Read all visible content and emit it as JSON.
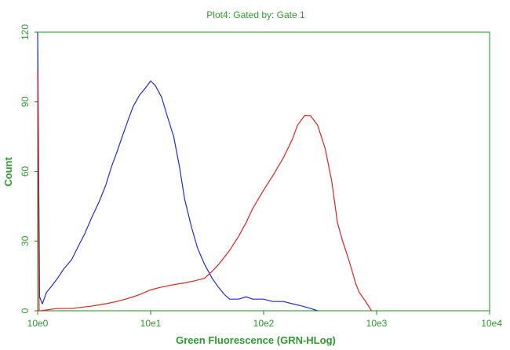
{
  "chart_data": {
    "type": "line",
    "title": "Plot4:  Gated by: Gate 1",
    "xlabel": "Green Fluorescence (GRN-HLog)",
    "ylabel": "Count",
    "x_scale": "log",
    "xlim": [
      1,
      10000
    ],
    "ylim": [
      0,
      120
    ],
    "x_ticks": [
      {
        "value": 1,
        "label": "10e0"
      },
      {
        "value": 10,
        "label": "10e1"
      },
      {
        "value": 100,
        "label": "10e2"
      },
      {
        "value": 1000,
        "label": "10e3"
      },
      {
        "value": 10000,
        "label": "10e4"
      }
    ],
    "y_ticks": [
      {
        "value": 0,
        "label": "0"
      },
      {
        "value": 30,
        "label": "30"
      },
      {
        "value": 60,
        "label": "60"
      },
      {
        "value": 90,
        "label": "90"
      },
      {
        "value": 120,
        "label": "120"
      }
    ],
    "grid": false,
    "series": [
      {
        "color": "#1f2bd6",
        "x": [
          1.0,
          1.04,
          1.1,
          1.2,
          1.3,
          1.5,
          1.7,
          2.0,
          2.3,
          2.6,
          3.0,
          3.5,
          4.0,
          4.5,
          5.0,
          5.6,
          6.3,
          7.0,
          8.0,
          9.0,
          10.0,
          11.0,
          12.5,
          14.0,
          16.0,
          18.0,
          20.0,
          23.0,
          26.0,
          30.0,
          35.0,
          40.0,
          45.0,
          50.0,
          60.0,
          70.0,
          80.0,
          100.0,
          120.0,
          150.0,
          180.0,
          220.0,
          260.0,
          300.0
        ],
        "y": [
          120,
          6,
          3,
          8,
          10,
          14,
          18,
          22,
          28,
          33,
          40,
          47,
          54,
          62,
          68,
          75,
          82,
          88,
          93,
          96,
          99,
          97,
          92,
          84,
          75,
          62,
          48,
          36,
          27,
          20,
          14,
          10,
          7,
          5,
          5,
          6,
          5,
          5,
          4,
          4,
          3,
          2,
          1,
          0
        ]
      },
      {
        "color": "#e02020",
        "x": [
          1.0,
          1.03,
          1.06,
          1.5,
          2.0,
          3.0,
          4.0,
          5.0,
          6.0,
          7.0,
          8.0,
          10.0,
          12.0,
          15.0,
          20.0,
          25.0,
          30.0,
          35.0,
          40.0,
          50.0,
          60.0,
          70.0,
          80.0,
          100.0,
          120.0,
          150.0,
          180.0,
          200.0,
          230.0,
          260.0,
          300.0,
          350.0,
          400.0,
          450.0,
          500.0,
          550.0,
          600.0,
          650.0,
          700.0,
          800.0,
          900.0
        ],
        "y": [
          103,
          0,
          0,
          1,
          1,
          2,
          3,
          4,
          5,
          6,
          7,
          9,
          10,
          11,
          12,
          13,
          14,
          17,
          20,
          26,
          32,
          38,
          44,
          52,
          58,
          66,
          74,
          80,
          84,
          84,
          80,
          70,
          56,
          38,
          30,
          24,
          18,
          12,
          8,
          4,
          0
        ]
      }
    ]
  }
}
